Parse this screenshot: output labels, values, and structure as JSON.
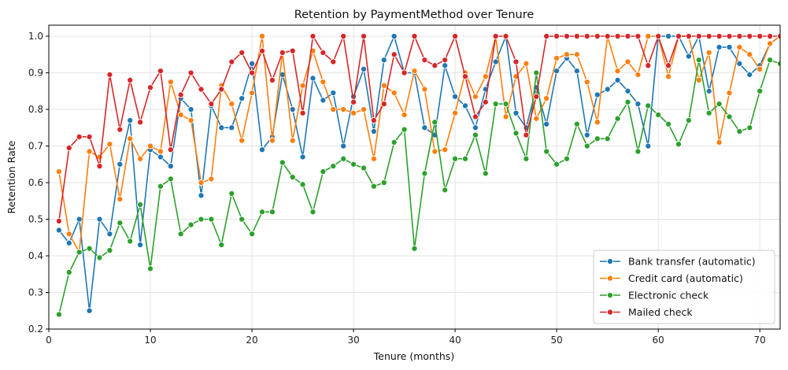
{
  "chart_data": {
    "type": "line",
    "title": "Retention by PaymentMethod over Tenure",
    "xlabel": "Tenure (months)",
    "ylabel": "Retention Rate",
    "xlim": [
      0,
      72
    ],
    "ylim": [
      0.2,
      1.03
    ],
    "xticks": [
      0,
      10,
      20,
      30,
      40,
      50,
      60,
      70
    ],
    "yticks": [
      0.2,
      0.3,
      0.4,
      0.5,
      0.6,
      0.7,
      0.8,
      0.9,
      1.0
    ],
    "xtick_labels": [
      "0",
      "10",
      "20",
      "30",
      "40",
      "50",
      "60",
      "70"
    ],
    "ytick_labels": [
      "0.2",
      "0.3",
      "0.4",
      "0.5",
      "0.6",
      "0.7",
      "0.8",
      "0.9",
      "1.0"
    ],
    "grid": true,
    "legend_position": "lower-right",
    "series": [
      {
        "name": "Bank transfer (automatic)",
        "color": "#1f77b4",
        "x": [
          1,
          2,
          3,
          4,
          5,
          6,
          7,
          8,
          9,
          10,
          11,
          12,
          13,
          14,
          15,
          16,
          17,
          18,
          19,
          20,
          21,
          22,
          23,
          24,
          25,
          26,
          27,
          28,
          29,
          30,
          31,
          32,
          33,
          34,
          35,
          36,
          37,
          38,
          39,
          40,
          41,
          42,
          43,
          44,
          45,
          46,
          47,
          48,
          49,
          50,
          51,
          52,
          53,
          54,
          55,
          56,
          57,
          58,
          59,
          60,
          61,
          62,
          63,
          64,
          65,
          66,
          67,
          68,
          69,
          70,
          71,
          72
        ],
        "y": [
          0.47,
          0.435,
          0.5,
          0.25,
          0.5,
          0.46,
          0.65,
          0.77,
          0.43,
          0.69,
          0.67,
          0.645,
          0.83,
          0.8,
          0.565,
          0.81,
          0.75,
          0.75,
          0.83,
          0.925,
          0.69,
          0.725,
          0.895,
          0.8,
          0.67,
          0.885,
          0.825,
          0.845,
          0.7,
          0.835,
          0.91,
          0.74,
          0.935,
          1.0,
          0.9,
          0.9,
          0.75,
          0.73,
          0.92,
          0.835,
          0.81,
          0.75,
          0.855,
          0.93,
          1.0,
          0.79,
          0.75,
          0.86,
          0.76,
          0.905,
          0.94,
          0.905,
          0.73,
          0.84,
          0.855,
          0.88,
          0.85,
          0.815,
          0.7,
          1.0,
          1.0,
          1.0,
          0.945,
          1.0,
          0.85,
          0.97,
          0.97,
          0.925,
          0.895,
          0.92,
          0.98,
          1.0
        ]
      },
      {
        "name": "Credit card (automatic)",
        "color": "#ff7f0e",
        "x": [
          1,
          2,
          3,
          4,
          5,
          6,
          7,
          8,
          9,
          10,
          11,
          12,
          13,
          14,
          15,
          16,
          17,
          18,
          19,
          20,
          21,
          22,
          23,
          24,
          25,
          26,
          27,
          28,
          29,
          30,
          31,
          32,
          33,
          34,
          35,
          36,
          37,
          38,
          39,
          40,
          41,
          42,
          43,
          44,
          45,
          46,
          47,
          48,
          49,
          50,
          51,
          52,
          53,
          54,
          55,
          56,
          57,
          58,
          59,
          60,
          61,
          62,
          63,
          64,
          65,
          66,
          67,
          68,
          69,
          70,
          71,
          72
        ],
        "y": [
          0.63,
          0.46,
          0.41,
          0.685,
          0.67,
          0.705,
          0.555,
          0.72,
          0.665,
          0.7,
          0.685,
          0.875,
          0.785,
          0.77,
          0.6,
          0.61,
          0.865,
          0.815,
          0.715,
          0.845,
          1.0,
          0.715,
          0.955,
          0.715,
          0.865,
          0.96,
          0.875,
          0.8,
          0.8,
          0.79,
          0.8,
          0.665,
          0.865,
          0.845,
          0.785,
          0.905,
          0.855,
          0.685,
          0.69,
          0.79,
          0.9,
          0.835,
          0.89,
          1.0,
          0.78,
          0.89,
          0.925,
          0.775,
          0.83,
          0.94,
          0.95,
          0.95,
          0.875,
          0.765,
          1.0,
          0.905,
          0.93,
          0.895,
          1.0,
          1.0,
          0.89,
          1.0,
          1.0,
          0.88,
          0.955,
          0.71,
          0.845,
          0.97,
          0.95,
          0.91,
          0.98,
          1.0
        ]
      },
      {
        "name": "Electronic check",
        "color": "#2ca02c",
        "x": [
          1,
          2,
          3,
          4,
          5,
          6,
          7,
          8,
          9,
          10,
          11,
          12,
          13,
          14,
          15,
          16,
          17,
          18,
          19,
          20,
          21,
          22,
          23,
          24,
          25,
          26,
          27,
          28,
          29,
          30,
          31,
          32,
          33,
          34,
          35,
          36,
          37,
          38,
          39,
          40,
          41,
          42,
          43,
          44,
          45,
          46,
          47,
          48,
          49,
          50,
          51,
          52,
          53,
          54,
          55,
          56,
          57,
          58,
          59,
          60,
          61,
          62,
          63,
          64,
          65,
          66,
          67,
          68,
          69,
          70,
          71,
          72
        ],
        "y": [
          0.24,
          0.355,
          0.41,
          0.42,
          0.395,
          0.415,
          0.49,
          0.44,
          0.54,
          0.365,
          0.59,
          0.61,
          0.46,
          0.485,
          0.5,
          0.5,
          0.43,
          0.57,
          0.5,
          0.46,
          0.52,
          0.52,
          0.655,
          0.615,
          0.595,
          0.52,
          0.63,
          0.645,
          0.665,
          0.65,
          0.64,
          0.59,
          0.6,
          0.71,
          0.745,
          0.42,
          0.625,
          0.765,
          0.58,
          0.665,
          0.665,
          0.73,
          0.625,
          0.815,
          0.815,
          0.735,
          0.665,
          0.9,
          0.685,
          0.65,
          0.665,
          0.76,
          0.7,
          0.72,
          0.72,
          0.775,
          0.82,
          0.685,
          0.81,
          0.785,
          0.76,
          0.705,
          0.77,
          0.935,
          0.79,
          0.815,
          0.78,
          0.74,
          0.75,
          0.85,
          0.935,
          0.925
        ]
      },
      {
        "name": "Mailed check",
        "color": "#d62728",
        "x": [
          1,
          2,
          3,
          4,
          5,
          6,
          7,
          8,
          9,
          10,
          11,
          12,
          13,
          14,
          15,
          16,
          17,
          18,
          19,
          20,
          21,
          22,
          23,
          24,
          25,
          26,
          27,
          28,
          29,
          30,
          31,
          32,
          33,
          34,
          35,
          36,
          37,
          38,
          39,
          40,
          41,
          42,
          43,
          44,
          45,
          46,
          47,
          48,
          49,
          50,
          51,
          52,
          53,
          54,
          55,
          56,
          57,
          58,
          59,
          60,
          61,
          62,
          63,
          64,
          65,
          66,
          67,
          68,
          69,
          70,
          71,
          72
        ],
        "y": [
          0.495,
          0.695,
          0.725,
          0.725,
          0.645,
          0.895,
          0.745,
          0.88,
          0.765,
          0.86,
          0.905,
          0.69,
          0.84,
          0.9,
          0.855,
          0.815,
          0.855,
          0.93,
          0.955,
          0.9,
          0.96,
          0.88,
          0.955,
          0.96,
          0.79,
          1.0,
          0.955,
          0.93,
          1.0,
          0.82,
          1.0,
          0.77,
          0.815,
          0.95,
          0.9,
          1.0,
          0.935,
          0.92,
          0.935,
          1.0,
          0.89,
          0.78,
          0.82,
          1.0,
          1.0,
          0.93,
          0.73,
          0.835,
          1.0,
          1.0,
          1.0,
          1.0,
          1.0,
          1.0,
          1.0,
          1.0,
          1.0,
          1.0,
          0.92,
          1.0,
          0.92,
          1.0,
          1.0,
          1.0,
          1.0,
          1.0,
          1.0,
          1.0,
          1.0,
          1.0,
          1.0,
          1.0
        ]
      }
    ]
  }
}
